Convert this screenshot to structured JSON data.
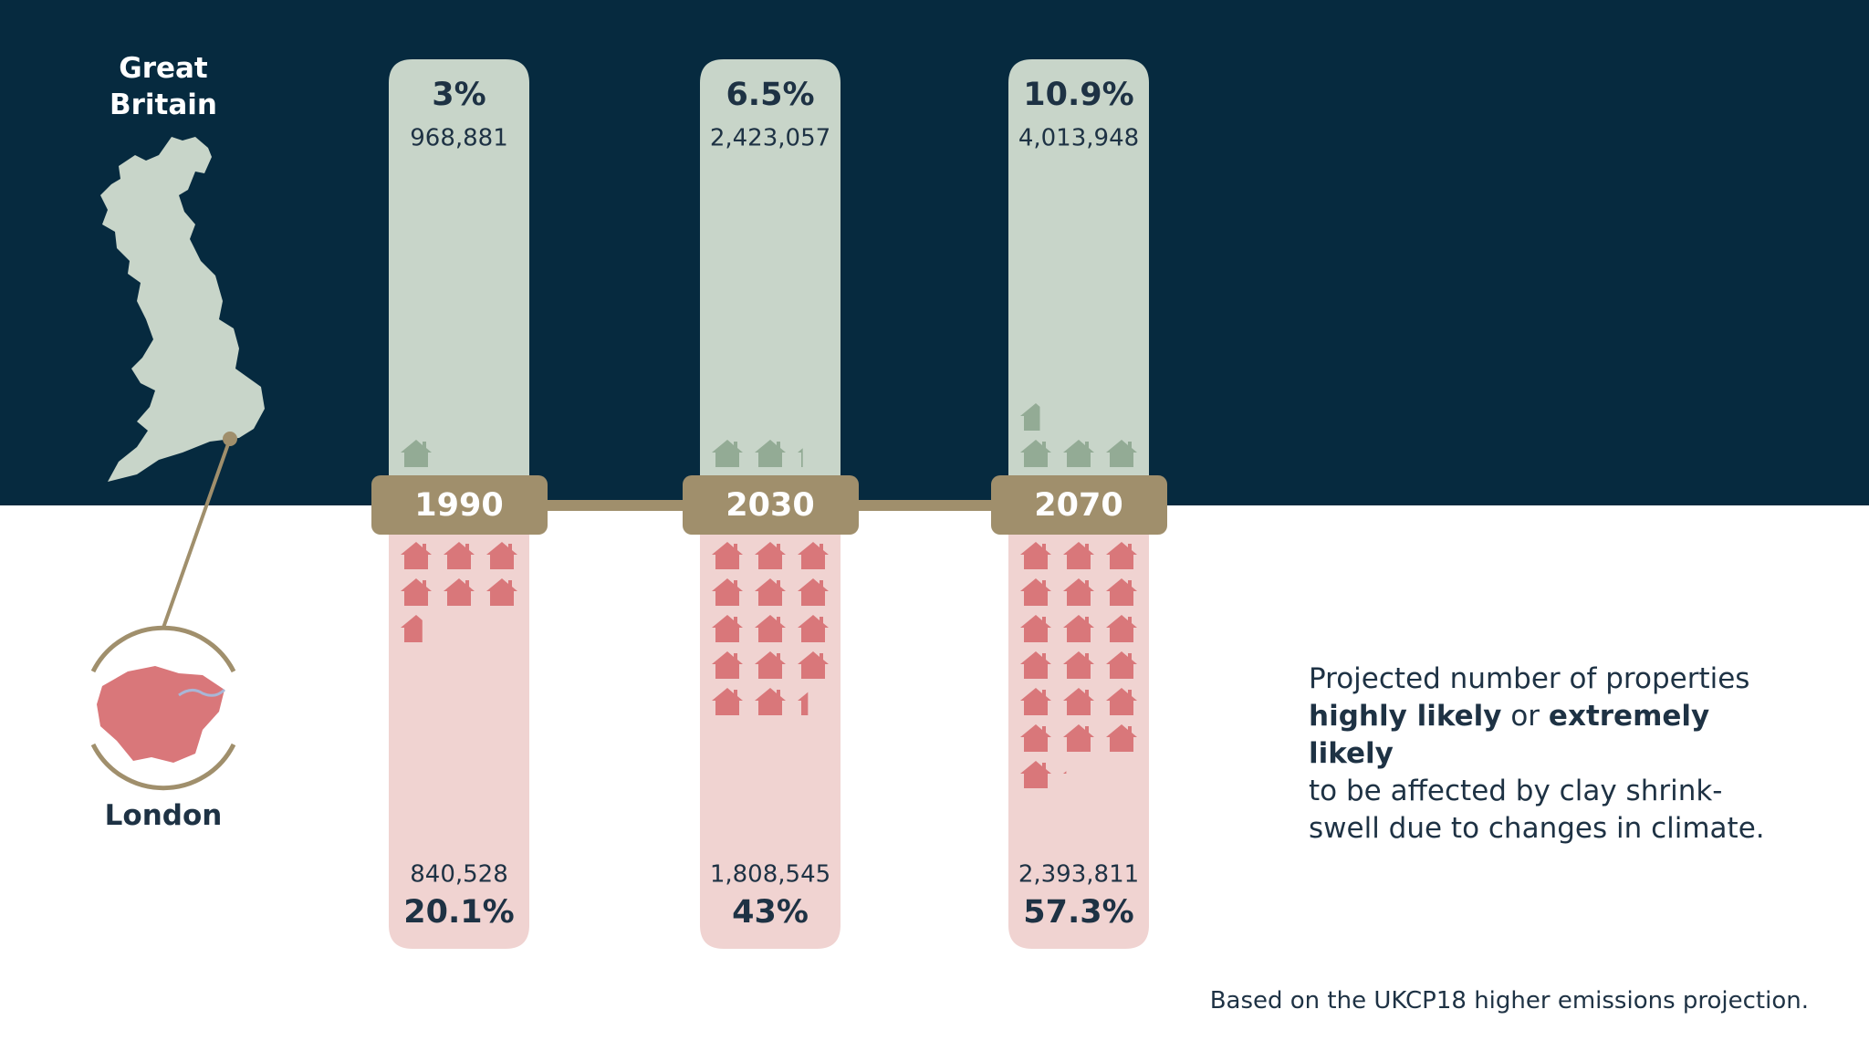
{
  "chart_data": {
    "type": "pictogram",
    "categories": [
      "1990",
      "2030",
      "2070"
    ],
    "series": [
      {
        "name": "Great Britain",
        "color": "#93ab95",
        "values": [
          3,
          6.5,
          10.9
        ],
        "value_labels": [
          "3%",
          "6.5%",
          "10.9%"
        ],
        "counts": [
          968881,
          2423057,
          4013948
        ],
        "count_labels": [
          "968,881",
          "2,423,057",
          "4,013,948"
        ]
      },
      {
        "name": "London",
        "color": "#d9777a",
        "values": [
          20.1,
          43,
          57.3
        ],
        "value_labels": [
          "20.1%",
          "43%",
          "57.3%"
        ],
        "counts": [
          840528,
          1808545,
          2393811
        ],
        "count_labels": [
          "840,528",
          "1,808,545",
          "2,393,811"
        ]
      }
    ]
  },
  "description": {
    "lead": "Projected number of properties",
    "emphasis_1": "highly likely",
    "connector": "or",
    "emphasis_2": "extremely likely",
    "tail": "to be affected by clay shrink-swell due to changes in climate."
  },
  "footnote": "Based on the UKCP18 higher emissions projection."
}
